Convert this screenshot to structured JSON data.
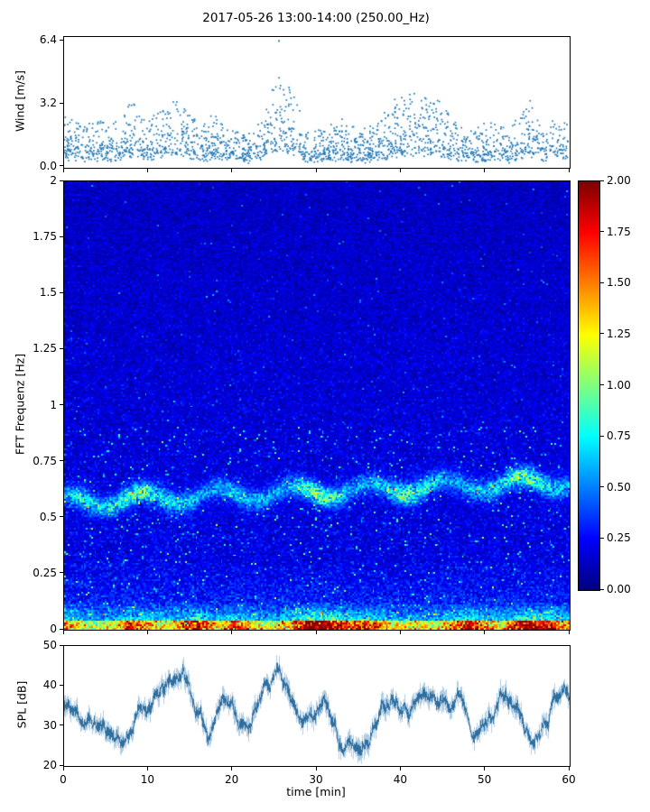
{
  "figure": {
    "title": "2017-05-26 13:00-14:00 (250.00_Hz)",
    "background": "#ffffff",
    "accent_color": "#1f77b4"
  },
  "chart_data": [
    {
      "id": "wind",
      "type": "scatter",
      "ylabel": "Wind [m/s]",
      "xlim": [
        0,
        60
      ],
      "ylim": [
        -0.05,
        6.6
      ],
      "yticks": [
        0.0,
        3.2,
        6.4
      ],
      "ytick_labels": [
        "0.0",
        "3.2",
        "6.4"
      ],
      "xticks": [
        0,
        10,
        20,
        30,
        40,
        50,
        60
      ],
      "marker_color": "#1f77b4",
      "n_points": 2000,
      "seed": 7,
      "max_point": {
        "x": 25.5,
        "y": 6.4
      },
      "gust_envelope": {
        "t": [
          0,
          2,
          4,
          6,
          8,
          10,
          12,
          14,
          16,
          18,
          20,
          22,
          24,
          25.5,
          27,
          29,
          31,
          33,
          35,
          37,
          39,
          41,
          43,
          45,
          47,
          49,
          51,
          53,
          55,
          57,
          59,
          60
        ],
        "v": [
          1.8,
          1.4,
          1.6,
          1.5,
          2.3,
          1.6,
          2.1,
          2.3,
          1.3,
          1.7,
          1.2,
          1.1,
          2.2,
          3.3,
          2.7,
          1.1,
          1.3,
          1.6,
          1.1,
          1.4,
          2.3,
          2.7,
          2.5,
          2.3,
          1.4,
          1.2,
          1.6,
          1.1,
          2.4,
          1.3,
          1.9,
          1.6
        ]
      }
    },
    {
      "id": "spectrogram",
      "type": "heatmap",
      "ylabel": "FFT Frequenz [Hz]",
      "xlim": [
        0,
        60
      ],
      "ylim": [
        0,
        2
      ],
      "yticks": [
        0,
        0.25,
        0.5,
        0.75,
        1,
        1.25,
        1.5,
        1.75,
        2
      ],
      "ytick_labels": [
        "0",
        "0.25",
        "0.5",
        "0.75",
        "1",
        "1.25",
        "1.5",
        "1.75",
        "2"
      ],
      "xticks": [
        0,
        10,
        20,
        30,
        40,
        50,
        60
      ],
      "colormap": "jet",
      "clim": [
        0,
        2
      ],
      "colorbar_ticks": [
        0,
        0.25,
        0.5,
        0.75,
        1,
        1.25,
        1.5,
        1.75,
        2
      ],
      "colorbar_tick_labels": [
        "0.00",
        "0.25",
        "0.50",
        "0.75",
        "1.00",
        "1.25",
        "1.50",
        "1.75",
        "2.00"
      ],
      "seed": 3,
      "grid": {
        "nt": 300,
        "nf": 250
      },
      "band": {
        "center": 0.57,
        "drift_per_min": 0.0015,
        "width": 0.045,
        "wiggle": 0.03,
        "profile_t": [
          0,
          2,
          4,
          6,
          8,
          10,
          12,
          14,
          16,
          18,
          20,
          22,
          24,
          26,
          28,
          30,
          32,
          34,
          36,
          38,
          40,
          42,
          44,
          46,
          48,
          50,
          52,
          54,
          56,
          58,
          60
        ],
        "profile_amp": [
          0.45,
          0.75,
          0.55,
          0.65,
          0.85,
          0.8,
          0.7,
          0.6,
          0.5,
          0.4,
          0.6,
          0.5,
          0.55,
          0.45,
          0.7,
          1.0,
          0.8,
          0.5,
          0.45,
          0.6,
          0.85,
          0.8,
          0.6,
          0.45,
          0.5,
          0.55,
          0.65,
          0.9,
          0.85,
          0.6,
          0.5
        ]
      },
      "low_band": {
        "cutoff": 0.12,
        "red_cutoff": 0.035,
        "profile_t": [
          0,
          2,
          4,
          6,
          8,
          10,
          12,
          14,
          16,
          18,
          20,
          22,
          24,
          26,
          28,
          30,
          32,
          34,
          36,
          38,
          40,
          42,
          44,
          46,
          48,
          50,
          52,
          54,
          56,
          58,
          60
        ],
        "profile_amp": [
          0.8,
          0.5,
          0.45,
          0.55,
          0.85,
          0.65,
          0.5,
          0.75,
          1.0,
          0.55,
          0.8,
          0.65,
          0.5,
          0.55,
          0.95,
          1.15,
          1.0,
          0.75,
          0.85,
          0.65,
          0.5,
          0.55,
          0.5,
          0.65,
          0.95,
          0.75,
          0.55,
          0.95,
          1.05,
          0.85,
          0.65
        ]
      },
      "speckle": {
        "prob": 0.02,
        "max_freq": 0.9
      }
    },
    {
      "id": "spl",
      "type": "line",
      "ylabel": "SPL [dB]",
      "xlabel": "time [min]",
      "xlim": [
        0,
        60
      ],
      "ylim": [
        20,
        50
      ],
      "yticks": [
        20,
        30,
        40,
        50
      ],
      "ytick_labels": [
        "20",
        "30",
        "40",
        "50"
      ],
      "xticks": [
        0,
        10,
        20,
        30,
        40,
        50,
        60
      ],
      "xtick_labels": [
        "0",
        "10",
        "20",
        "30",
        "40",
        "50",
        "60"
      ],
      "line_color": "#2f6f9f",
      "fuzz_color": "rgba(100,155,200,0.5)",
      "seed": 11,
      "trend": {
        "t": [
          0,
          2,
          4,
          6,
          7,
          9,
          11,
          13,
          14,
          16,
          17,
          19,
          21.5,
          23,
          25.5,
          27,
          29,
          31,
          33,
          35,
          37,
          39,
          41,
          43,
          45,
          47,
          49,
          50,
          52,
          54,
          55.5,
          57,
          59,
          60
        ],
        "v": [
          35,
          32,
          30,
          28,
          26,
          34,
          37,
          41,
          44,
          32,
          28,
          39,
          29,
          35,
          46,
          36,
          32,
          35,
          25,
          24,
          32,
          39,
          36,
          38,
          36,
          39,
          29,
          31,
          38,
          33,
          26,
          33,
          41,
          38
        ]
      }
    }
  ]
}
